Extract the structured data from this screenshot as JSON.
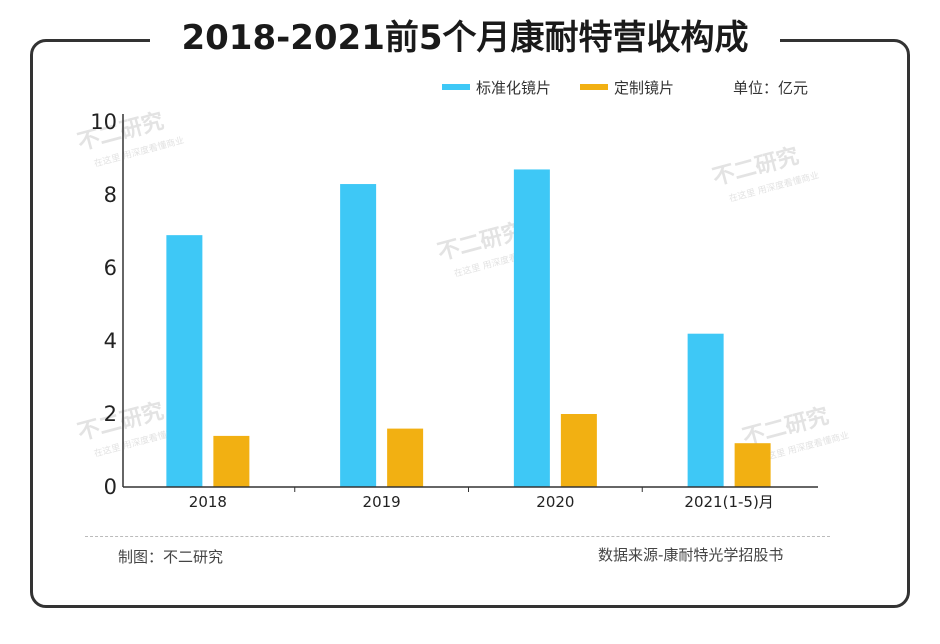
{
  "title": "2018-2021前5个月康耐特营收构成",
  "unit_label": "单位：亿元",
  "footer": {
    "left": "制图：不二研究",
    "right": "数据来源-康耐特光学招股书"
  },
  "watermark": {
    "main": "不二研究",
    "sub": "在这里 用深度看懂商业"
  },
  "colors": {
    "standard": "#3ec8f6",
    "custom": "#f2b012",
    "axis": "#333333"
  },
  "chart_data": {
    "type": "bar",
    "title": "2018-2021前5个月康耐特营收构成",
    "xlabel": "",
    "ylabel": "",
    "ylim": [
      0,
      10
    ],
    "yticks": [
      0,
      2,
      4,
      6,
      8,
      10
    ],
    "categories": [
      "2018",
      "2019",
      "2020",
      "2021(1-5)月"
    ],
    "series": [
      {
        "name": "标准化镜片",
        "color": "#3ec8f6",
        "values": [
          6.9,
          8.3,
          8.7,
          4.2
        ]
      },
      {
        "name": "定制镜片",
        "color": "#f2b012",
        "values": [
          1.4,
          1.6,
          2.0,
          1.2
        ]
      }
    ],
    "legend_position": "top-right",
    "grid": false
  }
}
